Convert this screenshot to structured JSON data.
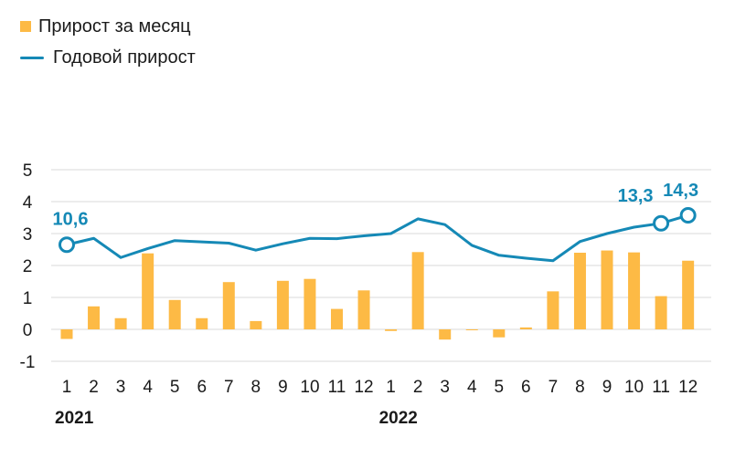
{
  "chart_data": {
    "type": "bar",
    "legend_placement": "top-left",
    "grid": true,
    "ylim": [
      -1,
      5
    ],
    "yticks": [
      "5",
      "4",
      "3",
      "2",
      "1",
      "0",
      "-1"
    ],
    "yticks_values": [
      5,
      4,
      3,
      2,
      1,
      0,
      -1
    ],
    "categories": [
      "1",
      "2",
      "3",
      "4",
      "5",
      "6",
      "7",
      "8",
      "9",
      "10",
      "11",
      "12",
      "1",
      "2",
      "3",
      "4",
      "5",
      "6",
      "7",
      "8",
      "9",
      "10",
      "11",
      "12"
    ],
    "years": [
      {
        "label": "2021",
        "start": 0
      },
      {
        "label": "2022",
        "start": 12
      }
    ],
    "series": [
      {
        "name": "Прирост за месяц",
        "type": "bar",
        "color": "#FDBA45",
        "values": [
          -0.3,
          0.72,
          0.35,
          2.38,
          0.92,
          0.35,
          1.48,
          0.26,
          1.52,
          1.58,
          0.64,
          1.22,
          -0.05,
          2.42,
          -0.32,
          -0.02,
          -0.25,
          0.06,
          1.19,
          2.4,
          2.47,
          2.41,
          1.04,
          2.15
        ]
      },
      {
        "name": "Годовой прирост",
        "type": "line",
        "color": "#1589B6",
        "values": [
          2.65,
          2.85,
          2.25,
          2.53,
          2.78,
          2.74,
          2.7,
          2.48,
          2.68,
          2.85,
          2.84,
          2.93,
          3.0,
          3.46,
          3.28,
          2.63,
          2.32,
          2.23,
          2.15,
          2.75,
          3.0,
          3.2,
          3.32,
          3.57
        ]
      }
    ],
    "annotations": [
      {
        "index": 0,
        "text": "10,6"
      },
      {
        "index": 22,
        "text": "13,3"
      },
      {
        "index": 23,
        "text": "14,3"
      }
    ]
  }
}
